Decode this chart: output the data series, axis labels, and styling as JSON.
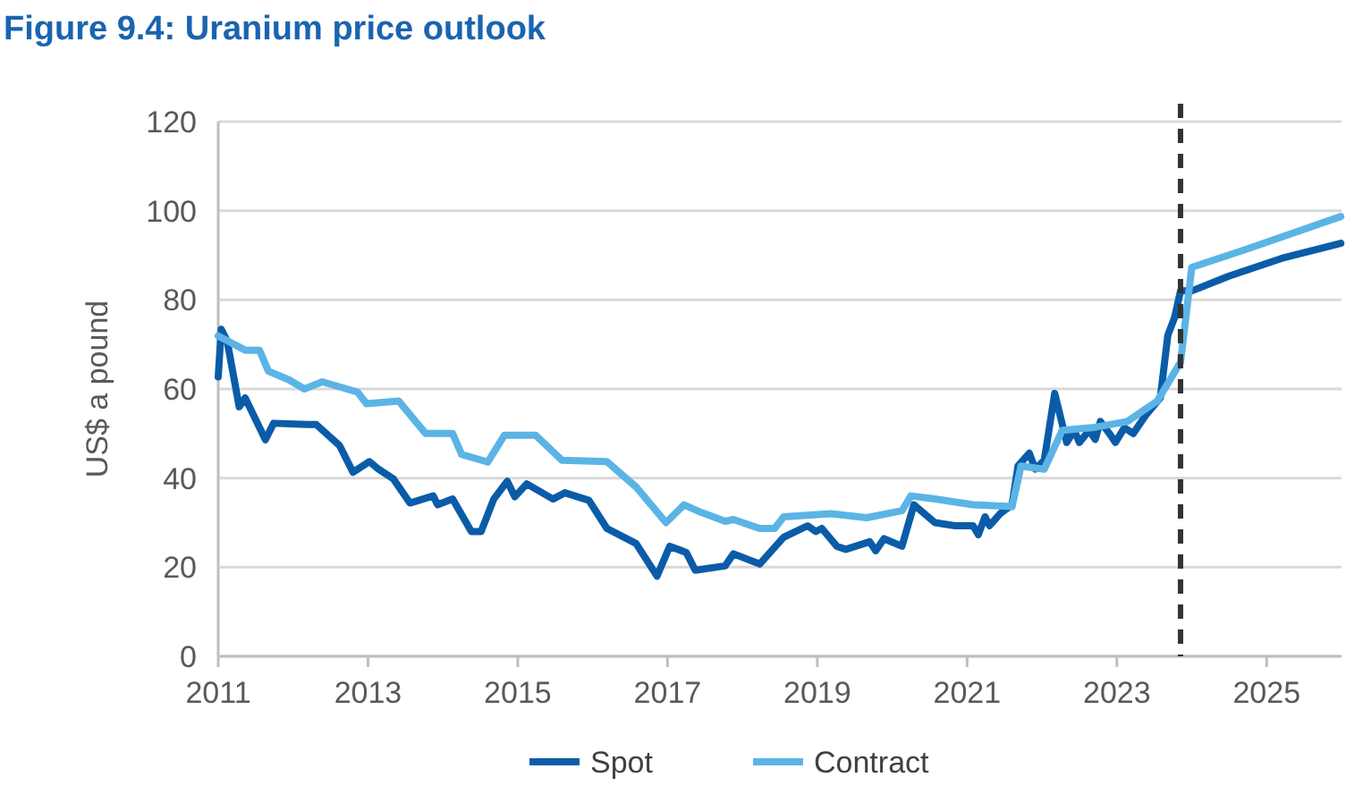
{
  "chart_data": {
    "type": "line",
    "title": "Figure 9.4: Uranium price outlook",
    "ylabel": "US$ a pound",
    "xlim": [
      2011,
      2026
    ],
    "xticks": [
      2011,
      2013,
      2015,
      2017,
      2019,
      2021,
      2023,
      2025
    ],
    "ylim": [
      0,
      120
    ],
    "yticks": [
      0,
      20,
      40,
      60,
      80,
      100,
      120
    ],
    "grid": "y",
    "legend": "bottom",
    "marker": "none",
    "line_style": "solid",
    "ref_lines": [
      {
        "axis": "x",
        "value": 2023.85,
        "line_style": "dashed",
        "color": "#333333"
      }
    ],
    "series": [
      {
        "name": "Spot",
        "color": "#0b5ca8",
        "x": [
          2011.0,
          2011.04,
          2011.12,
          2011.28,
          2011.36,
          2011.63,
          2011.74,
          2012.19,
          2012.31,
          2012.62,
          2012.8,
          2013.02,
          2013.14,
          2013.34,
          2013.56,
          2013.87,
          2013.93,
          2014.13,
          2014.38,
          2014.51,
          2014.68,
          2014.86,
          2014.96,
          2015.12,
          2015.47,
          2015.63,
          2015.95,
          2016.19,
          2016.58,
          2016.86,
          2017.03,
          2017.25,
          2017.37,
          2017.77,
          2017.88,
          2018.23,
          2018.55,
          2018.87,
          2018.98,
          2019.06,
          2019.26,
          2019.38,
          2019.7,
          2019.78,
          2019.89,
          2020.13,
          2020.29,
          2020.57,
          2020.84,
          2021.08,
          2021.15,
          2021.24,
          2021.3,
          2021.44,
          2021.6,
          2021.68,
          2021.83,
          2021.91,
          2022.03,
          2022.17,
          2022.33,
          2022.43,
          2022.5,
          2022.63,
          2022.71,
          2022.78,
          2022.9,
          2022.98,
          2023.1,
          2023.22,
          2023.38,
          2023.58,
          2023.68,
          2023.77,
          2023.85,
          2024.0,
          2024.49,
          2025.2,
          2025.99
        ],
        "values": [
          62.7,
          73.4,
          70.7,
          56,
          58,
          48.6,
          52.3,
          52,
          52,
          47.3,
          41.3,
          43.7,
          42,
          39.8,
          34.4,
          36,
          34,
          35.3,
          28,
          28,
          35.3,
          39.3,
          35.8,
          38.7,
          35.3,
          36.7,
          35,
          28.7,
          25.3,
          18,
          24.7,
          23.3,
          19.3,
          20.3,
          23,
          20.7,
          26.7,
          29.3,
          28,
          28.7,
          24.7,
          24,
          25.7,
          23.7,
          26.4,
          24.7,
          34,
          30,
          29.3,
          29.3,
          27.3,
          31.3,
          29.3,
          32,
          34,
          42.7,
          45.6,
          42,
          44,
          59,
          48,
          50.7,
          48,
          50.7,
          48.7,
          52.7,
          50,
          48,
          51.3,
          50,
          54,
          58,
          72,
          76,
          82,
          82,
          85.3,
          89.3,
          92.7
        ]
      },
      {
        "name": "Contract",
        "color": "#5bb4e5",
        "x": [
          2011.0,
          2011.36,
          2011.55,
          2011.67,
          2011.95,
          2012.15,
          2012.39,
          2012.86,
          2012.98,
          2013.41,
          2013.77,
          2014.13,
          2014.25,
          2014.6,
          2014.82,
          2015.24,
          2015.59,
          2016.19,
          2016.58,
          2016.98,
          2017.22,
          2017.45,
          2017.77,
          2017.88,
          2018.23,
          2018.43,
          2018.55,
          2019.18,
          2019.66,
          2020.13,
          2020.25,
          2020.57,
          2021.08,
          2021.6,
          2021.72,
          2022.03,
          2022.27,
          2022.67,
          2023.14,
          2023.54,
          2023.85,
          2024.0,
          2024.72,
          2025.99
        ],
        "values": [
          71.9,
          68.7,
          68.7,
          64,
          62,
          60,
          61.6,
          59.3,
          56.7,
          57.3,
          50,
          50,
          45.3,
          43.6,
          49.6,
          49.6,
          44,
          43.7,
          38,
          30,
          34,
          32.3,
          30.3,
          30.7,
          28.7,
          28.7,
          31.3,
          32,
          31.1,
          32.7,
          36,
          35.3,
          34,
          33.6,
          42.7,
          42,
          50.7,
          51.3,
          52.7,
          57.3,
          66,
          87.3,
          91.3,
          98.7
        ]
      }
    ]
  }
}
